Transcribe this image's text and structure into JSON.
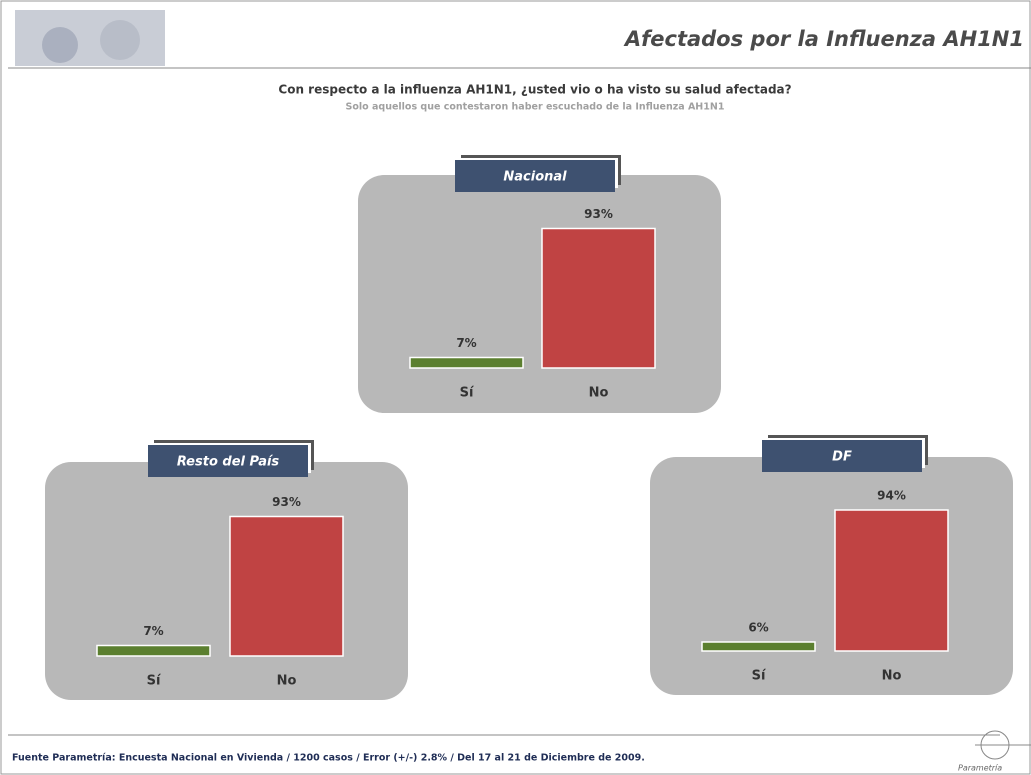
{
  "title": "Afectados por la Influenza AH1N1",
  "question": "Con respecto a la influenza AH1N1, ¿usted vio o ha visto su salud afectada?",
  "subtitle": "Solo aquellos que contestaron haber escuchado  de la Influenza AH1N1",
  "footer": "Fuente Parametría: Encuesta Nacional en Vivienda / 1200 casos / Error (+/-) 2.8% / Del 17 al 21 de Diciembre de 2009.",
  "logo": "Parametría",
  "chart_data": [
    {
      "type": "bar",
      "title": "Nacional",
      "categories": [
        "Sí",
        "No"
      ],
      "values": [
        7,
        93
      ],
      "value_labels": [
        "7%",
        "93%"
      ],
      "colors": [
        "#5b7f2f",
        "#c04343"
      ]
    },
    {
      "type": "bar",
      "title": "Resto del País",
      "categories": [
        "Sí",
        "No"
      ],
      "values": [
        7,
        93
      ],
      "value_labels": [
        "7%",
        "93%"
      ],
      "colors": [
        "#5b7f2f",
        "#c04343"
      ]
    },
    {
      "type": "bar",
      "title": "DF",
      "categories": [
        "Sí",
        "No"
      ],
      "values": [
        6,
        94
      ],
      "value_labels": [
        "6%",
        "94%"
      ],
      "colors": [
        "#5b7f2f",
        "#c04343"
      ]
    }
  ]
}
